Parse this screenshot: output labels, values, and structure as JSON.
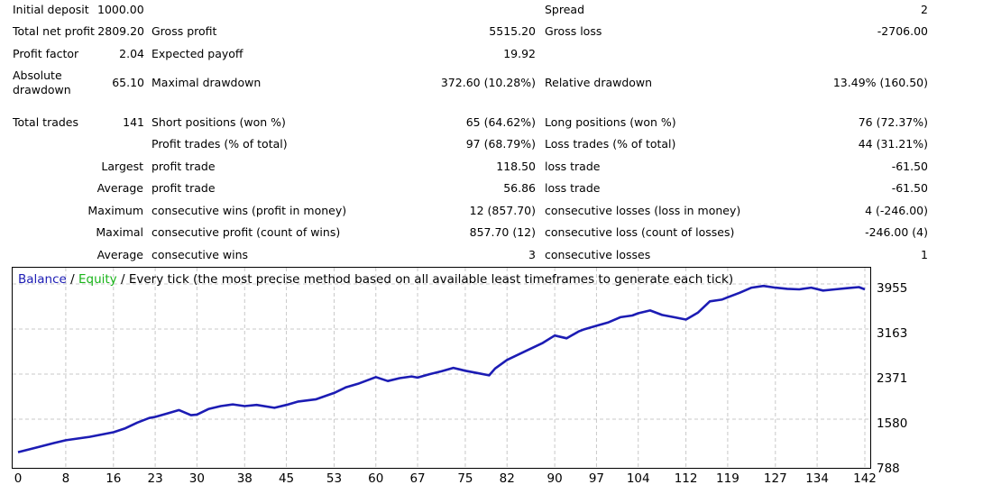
{
  "report": {
    "initial_deposit": {
      "label": "Initial deposit",
      "value": "1000.00"
    },
    "spread": {
      "label": "Spread",
      "value": "2"
    },
    "total_net_profit": {
      "label": "Total net profit",
      "value": "2809.20"
    },
    "gross_profit": {
      "label": "Gross profit",
      "value": "5515.20"
    },
    "gross_loss": {
      "label": "Gross loss",
      "value": "-2706.00"
    },
    "profit_factor": {
      "label": "Profit factor",
      "value": "2.04"
    },
    "expected_payoff": {
      "label": "Expected payoff",
      "value": "19.92"
    },
    "absolute_drawdown": {
      "label_line1": "Absolute",
      "label_line2": "drawdown",
      "value": "65.10"
    },
    "maximal_drawdown": {
      "label": "Maximal drawdown",
      "value": "372.60 (10.28%)"
    },
    "relative_drawdown": {
      "label": "Relative drawdown",
      "value": "13.49% (160.50)"
    },
    "total_trades": {
      "label": "Total trades",
      "value": "141"
    },
    "short_positions": {
      "label": "Short positions (won %)",
      "value": "65 (64.62%)"
    },
    "long_positions": {
      "label": "Long positions (won %)",
      "value": "76 (72.37%)"
    },
    "profit_trades": {
      "label": "Profit trades (% of total)",
      "value": "97 (68.79%)"
    },
    "loss_trades": {
      "label": "Loss trades (% of total)",
      "value": "44 (31.21%)"
    },
    "largest": {
      "label": "Largest",
      "profit_label": "profit trade",
      "profit_value": "118.50",
      "loss_label": "loss trade",
      "loss_value": "-61.50"
    },
    "average": {
      "label": "Average",
      "profit_label": "profit trade",
      "profit_value": "56.86",
      "loss_label": "loss trade",
      "loss_value": "-61.50"
    },
    "maximum": {
      "label": "Maximum",
      "wins_label": "consecutive wins (profit in money)",
      "wins_value": "12 (857.70)",
      "losses_label": "consecutive losses (loss in money)",
      "losses_value": "4 (-246.00)"
    },
    "maximal": {
      "label": "Maximal",
      "wins_label": "consecutive profit (count of wins)",
      "wins_value": "857.70 (12)",
      "losses_label": "consecutive loss (count of losses)",
      "losses_value": "-246.00 (4)"
    },
    "average_consecutive": {
      "label": "Average",
      "wins_label": "consecutive wins",
      "wins_value": "3",
      "losses_label": "consecutive losses",
      "losses_value": "1"
    }
  },
  "legend": {
    "balance": "Balance",
    "sep1": " / ",
    "equity": "Equity",
    "sep2": " / ",
    "rest": "Every tick (the most precise method based on all available least timeframes to generate each tick)"
  },
  "colors": {
    "balance": "#1c1cb4",
    "equity": "#18b418",
    "grid": "#c8c8c8"
  },
  "chart_data": {
    "type": "line",
    "y_tick_labels": [
      "3955",
      "3163",
      "2371",
      "1580",
      "788"
    ],
    "x_tick_labels": [
      "0",
      "8",
      "16",
      "23",
      "30",
      "38",
      "45",
      "53",
      "60",
      "67",
      "75",
      "82",
      "90",
      "97",
      "104",
      "112",
      "119",
      "127",
      "134",
      "142"
    ],
    "ylim": [
      788,
      3955
    ],
    "xlim": [
      0,
      142
    ],
    "grid": true,
    "series": [
      {
        "name": "Balance",
        "x": [
          0,
          3,
          6,
          8,
          10,
          12,
          16,
          18,
          20,
          22,
          23,
          25,
          27,
          29,
          30,
          32,
          34,
          36,
          38,
          40,
          43,
          45,
          47,
          50,
          53,
          55,
          57,
          60,
          62,
          64,
          66,
          67,
          69,
          71,
          73,
          75,
          77,
          79,
          80,
          82,
          85,
          88,
          90,
          92,
          94,
          95,
          97,
          99,
          101,
          103,
          104,
          106,
          108,
          110,
          112,
          114,
          116,
          118,
          119,
          121,
          123,
          125,
          127,
          129,
          131,
          133,
          135,
          137,
          139,
          141,
          142
        ],
        "y": [
          1000,
          1080,
          1160,
          1210,
          1240,
          1270,
          1350,
          1420,
          1520,
          1600,
          1620,
          1680,
          1740,
          1650,
          1660,
          1760,
          1810,
          1840,
          1810,
          1830,
          1780,
          1830,
          1890,
          1930,
          2040,
          2140,
          2200,
          2320,
          2250,
          2300,
          2330,
          2310,
          2370,
          2420,
          2480,
          2430,
          2390,
          2350,
          2470,
          2620,
          2770,
          2920,
          3050,
          3000,
          3120,
          3160,
          3220,
          3280,
          3370,
          3400,
          3440,
          3490,
          3410,
          3370,
          3330,
          3450,
          3650,
          3680,
          3720,
          3800,
          3890,
          3920,
          3890,
          3870,
          3860,
          3890,
          3840,
          3860,
          3880,
          3900,
          3860
        ]
      }
    ]
  }
}
